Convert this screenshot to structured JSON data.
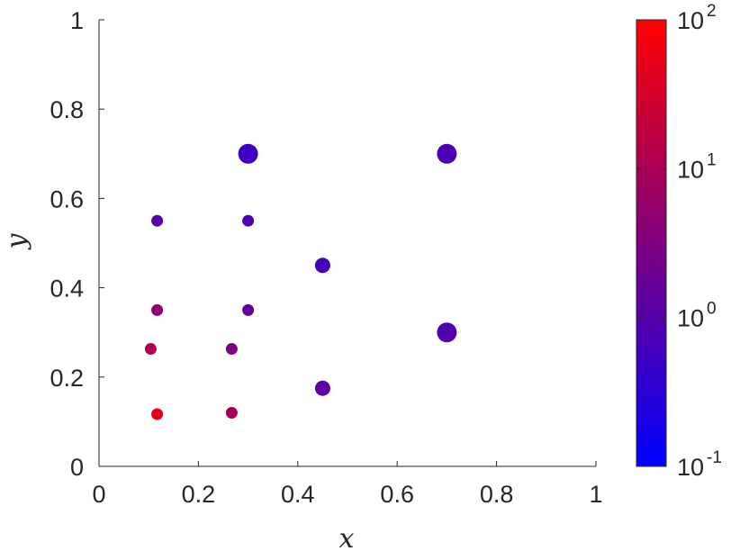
{
  "chart_data": {
    "type": "scatter",
    "xlabel": "x",
    "ylabel": "y",
    "xlim": [
      0,
      1
    ],
    "ylim": [
      0,
      1
    ],
    "xticks": [
      "0",
      "0.2",
      "0.4",
      "0.6",
      "0.8",
      "1"
    ],
    "yticks": [
      "0",
      "0.2",
      "0.4",
      "0.6",
      "0.8",
      "1"
    ],
    "grid": false,
    "colorbar": {
      "scale": "log",
      "range": [
        0.1,
        100
      ],
      "colormap": [
        "#0000ff",
        "#ff0000"
      ],
      "ticks": [
        {
          "value": 0.1,
          "base": "10",
          "exp": "-1"
        },
        {
          "value": 1,
          "base": "10",
          "exp": "0"
        },
        {
          "value": 10,
          "base": "10",
          "exp": "1"
        },
        {
          "value": 100,
          "base": "10",
          "exp": "2"
        }
      ]
    },
    "points": [
      {
        "x": 0.3,
        "y": 0.7,
        "c": 0.5,
        "size": "large"
      },
      {
        "x": 0.7,
        "y": 0.7,
        "c": 0.8,
        "size": "large"
      },
      {
        "x": 0.7,
        "y": 0.3,
        "c": 0.9,
        "size": "large"
      },
      {
        "x": 0.45,
        "y": 0.45,
        "c": 0.6,
        "size": "medium"
      },
      {
        "x": 0.45,
        "y": 0.175,
        "c": 1.3,
        "size": "medium"
      },
      {
        "x": 0.117,
        "y": 0.55,
        "c": 1.0,
        "size": "small"
      },
      {
        "x": 0.3,
        "y": 0.55,
        "c": 0.8,
        "size": "small"
      },
      {
        "x": 0.117,
        "y": 0.35,
        "c": 5.0,
        "size": "small"
      },
      {
        "x": 0.3,
        "y": 0.35,
        "c": 1.5,
        "size": "small"
      },
      {
        "x": 0.104,
        "y": 0.263,
        "c": 10,
        "size": "small"
      },
      {
        "x": 0.267,
        "y": 0.263,
        "c": 3.0,
        "size": "small"
      },
      {
        "x": 0.117,
        "y": 0.117,
        "c": 50,
        "size": "small"
      },
      {
        "x": 0.267,
        "y": 0.12,
        "c": 8.0,
        "size": "small"
      }
    ]
  }
}
